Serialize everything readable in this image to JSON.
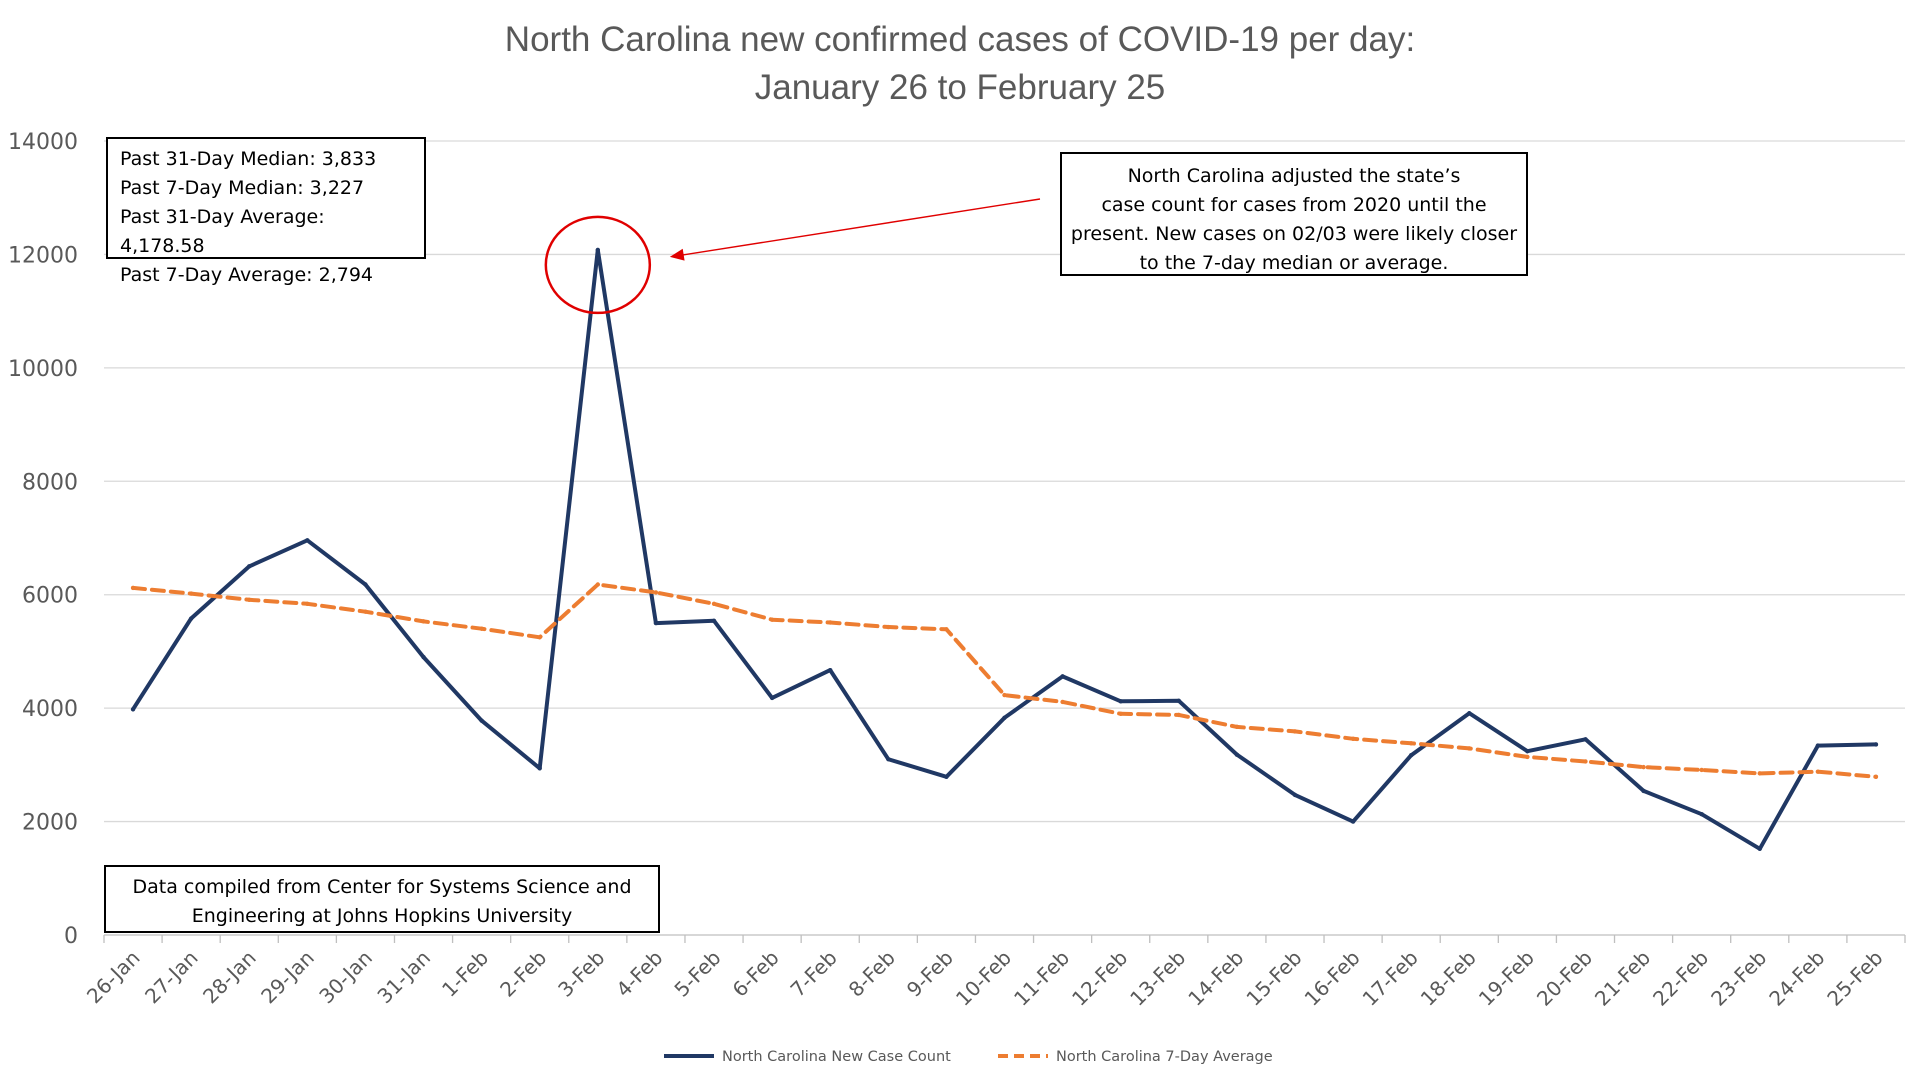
{
  "chart_data": {
    "type": "line",
    "title": "North Carolina new confirmed cases of COVID-19 per day:",
    "subtitle": "January 26 to February 25",
    "xlabel": "",
    "ylabel": "",
    "ylim": [
      0,
      14000
    ],
    "yticks": [
      0,
      2000,
      4000,
      6000,
      8000,
      10000,
      12000,
      14000
    ],
    "grid": true,
    "legend_position": "bottom",
    "categories": [
      "26-Jan",
      "27-Jan",
      "28-Jan",
      "29-Jan",
      "30-Jan",
      "31-Jan",
      "1-Feb",
      "2-Feb",
      "3-Feb",
      "4-Feb",
      "5-Feb",
      "6-Feb",
      "7-Feb",
      "8-Feb",
      "9-Feb",
      "10-Feb",
      "11-Feb",
      "12-Feb",
      "13-Feb",
      "14-Feb",
      "15-Feb",
      "16-Feb",
      "17-Feb",
      "18-Feb",
      "19-Feb",
      "20-Feb",
      "21-Feb",
      "22-Feb",
      "23-Feb",
      "24-Feb",
      "25-Feb"
    ],
    "series": [
      {
        "name": "North Carolina New Case Count",
        "color": "#203864",
        "style": "solid",
        "values": [
          3980,
          5580,
          6500,
          6960,
          6180,
          4900,
          3780,
          2940,
          12080,
          5500,
          5540,
          4180,
          4670,
          3100,
          2790,
          3830,
          4560,
          4120,
          4130,
          3180,
          2470,
          2000,
          3170,
          3910,
          3240,
          3450,
          2540,
          2130,
          1520,
          3340,
          3360
        ]
      },
      {
        "name": "North Carolina 7-Day Average",
        "color": "#ED7D31",
        "style": "dashed",
        "values": [
          6120,
          6020,
          5910,
          5840,
          5700,
          5530,
          5400,
          5250,
          6180,
          6040,
          5840,
          5560,
          5510,
          5430,
          5390,
          4230,
          4110,
          3900,
          3880,
          3670,
          3590,
          3460,
          3380,
          3290,
          3140,
          3060,
          2960,
          2910,
          2850,
          2880,
          2790
        ]
      }
    ],
    "annotations": {
      "stats_lines": [
        "Past 31-Day Median: 3,833",
        "Past 7-Day Median: 3,227",
        "Past 31-Day Average: 4,178.58",
        "Past 7-Day Average: 2,794"
      ],
      "note_lines": [
        "North Carolina adjusted the state’s",
        "case count for cases from 2020 until the",
        "present. New cases on 02/03 were likely closer",
        "to the 7-day median or average."
      ],
      "source_lines": [
        "Data compiled from Center for Systems Science and",
        "Engineering at Johns Hopkins University"
      ],
      "highlight_category": "3-Feb",
      "highlight_color": "#E00000"
    }
  }
}
